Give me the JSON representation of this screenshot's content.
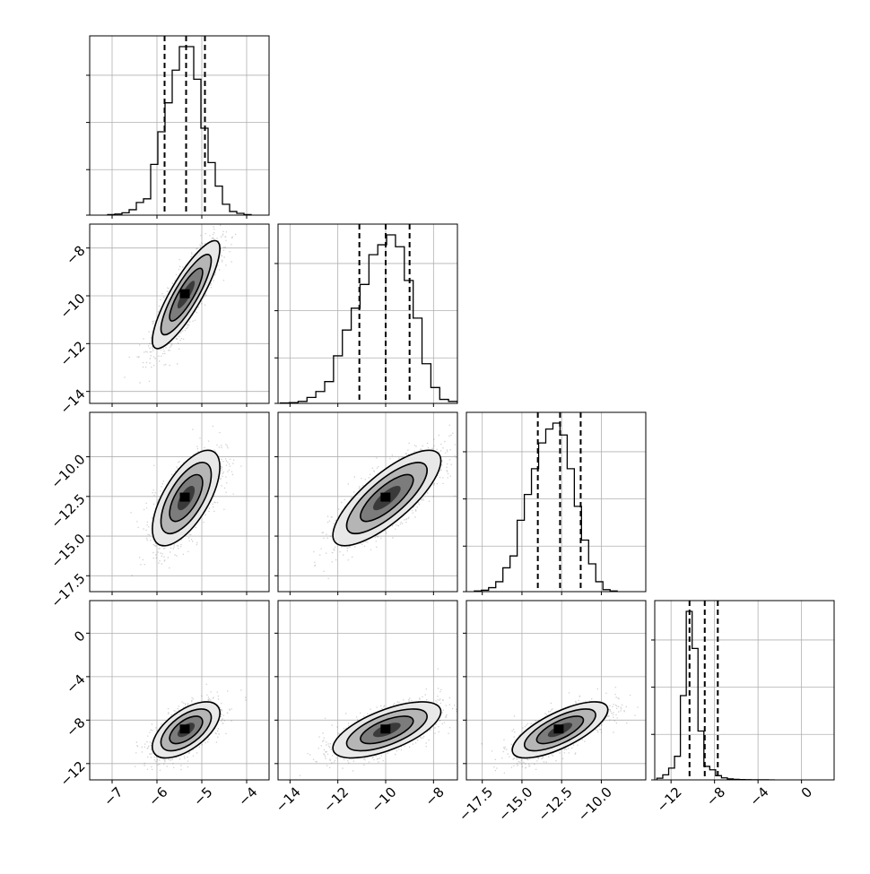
{
  "chart_data": {
    "type": "corner",
    "description_source": "visible",
    "parameters": 4,
    "colors": {
      "grid": "#b0b0b0",
      "line": "#000000",
      "scatter": "#555555",
      "background": "#ffffff"
    },
    "axes": [
      {
        "range": [
          -7.5,
          -3.5
        ],
        "ticks": [
          -7,
          -6,
          -5,
          -4
        ],
        "tick_labels": [
          "−7",
          "−6",
          "−5",
          "−4"
        ],
        "quantiles": [
          -5.83,
          -5.35,
          -4.93
        ],
        "center": -5.35,
        "sigma": 0.35
      },
      {
        "range": [
          -14.5,
          -7.0
        ],
        "ticks": [
          -14,
          -12,
          -10,
          -8
        ],
        "tick_labels": [
          "−14",
          "−12",
          "−10",
          "−8"
        ],
        "quantiles": [
          -11.1,
          -10.0,
          -9.0
        ],
        "center": -9.95,
        "sigma": 1.05
      },
      {
        "range": [
          -18.5,
          -7.2
        ],
        "ticks": [
          -17.5,
          -15.0,
          -12.5,
          -10.0
        ],
        "tick_labels": [
          "−17.5",
          "−15.0",
          "−12.5",
          "−10.0"
        ],
        "quantiles": [
          -14.0,
          -12.6,
          -11.3
        ],
        "center": -12.6,
        "sigma": 1.4
      },
      {
        "range": [
          -13.5,
          3.0
        ],
        "ticks": [
          -12,
          -8,
          -4,
          0
        ],
        "tick_labels": [
          "−12",
          "−8",
          "−4",
          "0"
        ],
        "quantiles": [
          -10.3,
          -8.9,
          -7.7
        ],
        "center": -8.9,
        "sigma": 1.2
      }
    ],
    "histograms": [
      {
        "bins": 20,
        "edges_range": [
          -7.1,
          -3.9
        ],
        "values": [
          0.003,
          0.006,
          0.013,
          0.03,
          0.07,
          0.09,
          0.28,
          0.46,
          0.62,
          0.8,
          0.93,
          0.93,
          0.75,
          0.48,
          0.29,
          0.16,
          0.06,
          0.02,
          0.01,
          0.003
        ]
      },
      {
        "bins": 20,
        "edges_range": [
          -14.4,
          -7.0
        ],
        "values": [
          0.002,
          0.004,
          0.01,
          0.03,
          0.06,
          0.11,
          0.24,
          0.37,
          0.48,
          0.6,
          0.75,
          0.8,
          0.85,
          0.79,
          0.62,
          0.43,
          0.2,
          0.08,
          0.02,
          0.01
        ]
      },
      {
        "bins": 20,
        "edges_range": [
          -18.0,
          -9.0
        ],
        "values": [
          0.003,
          0.007,
          0.02,
          0.05,
          0.12,
          0.18,
          0.36,
          0.49,
          0.62,
          0.75,
          0.82,
          0.85,
          0.79,
          0.62,
          0.43,
          0.26,
          0.14,
          0.05,
          0.01,
          0.003
        ]
      },
      {
        "bins": 20,
        "edges_range": [
          -13.3,
          -2.5
        ],
        "values": [
          0.01,
          0.03,
          0.07,
          0.14,
          0.5,
          1.0,
          0.78,
          0.29,
          0.08,
          0.06,
          0.025,
          0.012,
          0.006,
          0.003,
          0.002,
          0.001,
          0.0005,
          0.0003,
          0.0002,
          0.0001
        ]
      }
    ],
    "pairs": [
      {
        "row": 1,
        "col": 0,
        "correlation": 0.85
      },
      {
        "row": 2,
        "col": 0,
        "correlation": 0.65
      },
      {
        "row": 2,
        "col": 1,
        "correlation": 0.78
      },
      {
        "row": 3,
        "col": 0,
        "correlation": 0.6
      },
      {
        "row": 3,
        "col": 1,
        "correlation": 0.65
      },
      {
        "row": 3,
        "col": 2,
        "correlation": 0.72
      }
    ]
  }
}
